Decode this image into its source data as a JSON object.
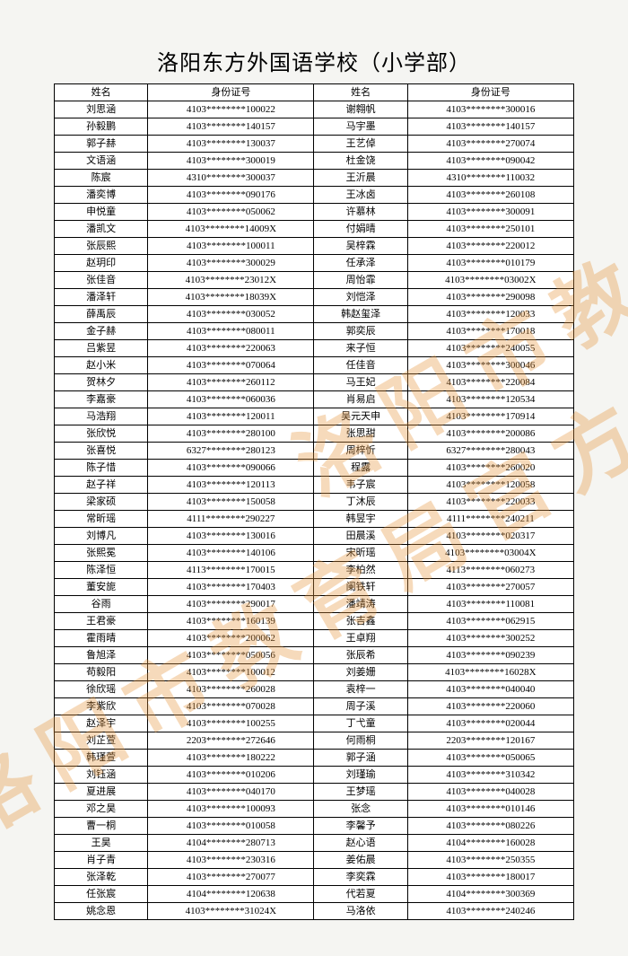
{
  "title": "洛阳东方外国语学校（小学部）",
  "watermark": "洛阳市教育局官方发布",
  "headers": {
    "name": "姓名",
    "id": "身份证号"
  },
  "table": {
    "type": "table",
    "columns": [
      "姓名",
      "身份证号",
      "姓名",
      "身份证号"
    ],
    "background_color": "#ffffff",
    "border_color": "#000000",
    "font_size": 11,
    "rows": [
      [
        "刘思涵",
        "4103********100022",
        "谢翱帆",
        "4103********300016"
      ],
      [
        "孙毅鹏",
        "4103********140157",
        "马宇墨",
        "4103********140157"
      ],
      [
        "郭子赫",
        "4103********130037",
        "王艺倬",
        "4103********270074"
      ],
      [
        "文语涵",
        "4103********300019",
        "杜金饶",
        "4103********090042"
      ],
      [
        "陈宸",
        "4310********300037",
        "王沂晨",
        "4310********110032"
      ],
      [
        "潘奕博",
        "4103********090176",
        "王冰卤",
        "4103********260108"
      ],
      [
        "申悦童",
        "4103********050062",
        "许慕林",
        "4103********300091"
      ],
      [
        "潘凯文",
        "4103********14009X",
        "付娟晴",
        "4103********250101"
      ],
      [
        "张辰熙",
        "4103********100011",
        "吴梓霖",
        "4103********220012"
      ],
      [
        "赵玥印",
        "4103********300029",
        "任承泽",
        "4103********010179"
      ],
      [
        "张佳音",
        "4103********23012X",
        "周怡霏",
        "4103********03002X"
      ],
      [
        "潘泽轩",
        "4103********18039X",
        "刘恺泽",
        "4103********290098"
      ],
      [
        "薛禹辰",
        "4103********030052",
        "韩赵玺泽",
        "4103********120033"
      ],
      [
        "金子赫",
        "4103********080011",
        "郭奕辰",
        "4103********170018"
      ],
      [
        "吕紫昱",
        "4103********220063",
        "来子恒",
        "4103********240055"
      ],
      [
        "赵小米",
        "4103********070064",
        "任佳音",
        "4103********300046"
      ],
      [
        "贺林夕",
        "4103********260112",
        "马王妃",
        "4103********220084"
      ],
      [
        "李嘉豪",
        "4103********060036",
        "肖易启",
        "4103********120534"
      ],
      [
        "马浩翔",
        "4103********120011",
        "吴元天申",
        "4103********170914"
      ],
      [
        "张欣悦",
        "4103********280100",
        "张思甜",
        "4103********200086"
      ],
      [
        "张喜悦",
        "6327********280123",
        "周梓忻",
        "6327********280043"
      ],
      [
        "陈子惜",
        "4103********090066",
        "程露",
        "4103********260020"
      ],
      [
        "赵子祥",
        "4103********120113",
        "韦子宸",
        "4103********120058"
      ],
      [
        "梁家硕",
        "4103********150058",
        "丁沐辰",
        "4103********220033"
      ],
      [
        "常昕瑶",
        "4111********290227",
        "韩昱宇",
        "4111********240211"
      ],
      [
        "刘博凡",
        "4103********130016",
        "田晨溪",
        "4103********020317"
      ],
      [
        "张熙冕",
        "4103********140106",
        "宋昕瑶",
        "4103********03004X"
      ],
      [
        "陈泽恒",
        "4113********170015",
        "李柏然",
        "4113********060273"
      ],
      [
        "董安旎",
        "4103********170403",
        "阑铁轩",
        "4103********270057"
      ],
      [
        "谷雨",
        "4103********290017",
        "潘靖涛",
        "4103********110081"
      ],
      [
        "王君豪",
        "4103********160139",
        "张吉鑫",
        "4103********062915"
      ],
      [
        "霍雨晴",
        "4103********200062",
        "王卓翔",
        "4103********300252"
      ],
      [
        "鲁旭泽",
        "4103********050056",
        "张辰希",
        "4103********090239"
      ],
      [
        "苟毅阳",
        "4103********100012",
        "刘姜姗",
        "4103********16028X"
      ],
      [
        "徐欣瑶",
        "4103********260028",
        "袁梓一",
        "4103********040040"
      ],
      [
        "李紫欣",
        "4103********070028",
        "周子溪",
        "4103********220060"
      ],
      [
        "赵泽宇",
        "4103********100255",
        "丁弋童",
        "4103********020044"
      ],
      [
        "刘芷萱",
        "2203********272646",
        "何雨桐",
        "2203********120167"
      ],
      [
        "韩瑾萱",
        "4103********180222",
        "郭子涵",
        "4103********050065"
      ],
      [
        "刘钰涵",
        "4103********010206",
        "刘瑾瑜",
        "4103********310342"
      ],
      [
        "夏进展",
        "4103********040170",
        "王梦瑶",
        "4103********040028"
      ],
      [
        "邓之昊",
        "4103********100093",
        "张念",
        "4103********010146"
      ],
      [
        "曹一桐",
        "4103********010058",
        "李馨予",
        "4103********080226"
      ],
      [
        "王昊",
        "4104********280713",
        "赵心语",
        "4104********160028"
      ],
      [
        "肖子青",
        "4103********230316",
        "姜佑晨",
        "4103********250355"
      ],
      [
        "张泽乾",
        "4103********270077",
        "李奕霖",
        "4103********180017"
      ],
      [
        "任张宸",
        "4104********120638",
        "代若夏",
        "4104********300369"
      ],
      [
        "姚念恩",
        "4103********31024X",
        "马洛依",
        "4103********240246"
      ]
    ]
  }
}
